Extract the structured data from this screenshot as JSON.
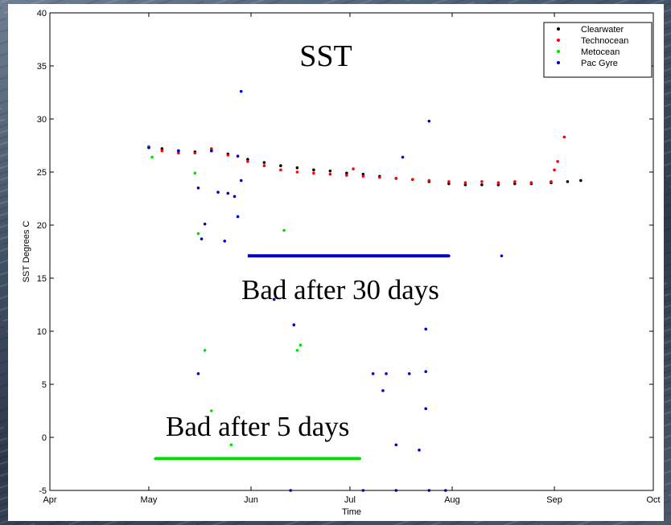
{
  "chart_data": {
    "type": "scatter",
    "title": "SST",
    "xlabel": "Time",
    "ylabel": "SST Degrees C",
    "x_ticks": [
      "Apr",
      "May",
      "Jun",
      "Jul",
      "Aug",
      "Sep",
      "Oct"
    ],
    "ylim": [
      -5,
      40
    ],
    "y_ticks": [
      -5,
      0,
      5,
      10,
      15,
      20,
      25,
      30,
      35,
      40
    ],
    "legend_position": "top-right",
    "grid": false,
    "annotations": [
      "Bad after 30 days",
      "Bad after 5 days"
    ],
    "series": [
      {
        "name": "Clearwater",
        "color": "#000000",
        "marker": "dot",
        "points": [
          [
            "05-01",
            27.4
          ],
          [
            "05-05",
            27.2
          ],
          [
            "05-10",
            27.0
          ],
          [
            "05-15",
            26.9
          ],
          [
            "05-20",
            27.0
          ],
          [
            "05-25",
            26.7
          ],
          [
            "05-31",
            26.2
          ],
          [
            "06-05",
            25.9
          ],
          [
            "06-10",
            25.6
          ],
          [
            "06-15",
            25.4
          ],
          [
            "06-20",
            25.2
          ],
          [
            "06-25",
            25.1
          ],
          [
            "06-30",
            24.9
          ],
          [
            "07-05",
            24.8
          ],
          [
            "07-10",
            24.6
          ],
          [
            "07-15",
            24.4
          ],
          [
            "07-20",
            24.3
          ],
          [
            "07-25",
            24.1
          ],
          [
            "07-31",
            23.9
          ],
          [
            "08-05",
            23.8
          ],
          [
            "08-10",
            23.8
          ],
          [
            "08-15",
            23.8
          ],
          [
            "08-20",
            23.9
          ],
          [
            "08-25",
            23.9
          ],
          [
            "08-31",
            24.0
          ],
          [
            "09-05",
            24.1
          ],
          [
            "09-09",
            24.2
          ]
        ]
      },
      {
        "name": "Technocean",
        "color": "#ff0000",
        "marker": "dot",
        "points": [
          [
            "05-01",
            27.3
          ],
          [
            "05-05",
            27.0
          ],
          [
            "05-10",
            26.8
          ],
          [
            "05-15",
            26.8
          ],
          [
            "05-20",
            27.2
          ],
          [
            "05-25",
            26.6
          ],
          [
            "05-31",
            26.0
          ],
          [
            "06-05",
            25.6
          ],
          [
            "06-10",
            25.2
          ],
          [
            "06-15",
            25.0
          ],
          [
            "06-20",
            24.9
          ],
          [
            "06-25",
            24.8
          ],
          [
            "06-30",
            24.7
          ],
          [
            "07-02",
            25.3
          ],
          [
            "07-05",
            24.6
          ],
          [
            "07-10",
            24.5
          ],
          [
            "07-15",
            24.4
          ],
          [
            "07-20",
            24.3
          ],
          [
            "07-25",
            24.2
          ],
          [
            "07-31",
            24.1
          ],
          [
            "08-05",
            24.0
          ],
          [
            "08-10",
            24.1
          ],
          [
            "08-15",
            24.0
          ],
          [
            "08-20",
            24.1
          ],
          [
            "08-25",
            24.0
          ],
          [
            "08-31",
            24.1
          ],
          [
            "09-01",
            25.2
          ],
          [
            "09-02",
            26.0
          ],
          [
            "09-04",
            28.3
          ]
        ]
      },
      {
        "name": "Metocean",
        "color": "#00e000",
        "marker": "dot",
        "points": [
          [
            "05-01",
            27.4
          ],
          [
            "05-02",
            26.4
          ],
          [
            "05-15",
            24.9
          ],
          [
            "05-16",
            19.2
          ],
          [
            "05-18",
            8.2
          ],
          [
            "05-20",
            2.5
          ],
          [
            "05-26",
            -0.7
          ],
          [
            "06-11",
            19.5
          ],
          [
            "06-15",
            8.2
          ],
          [
            "06-16",
            8.7
          ],
          [
            "05-03",
            -2.0
          ],
          [
            "05-10",
            -2.0
          ],
          [
            "05-20",
            -2.0
          ],
          [
            "05-30",
            -2.0
          ],
          [
            "06-10",
            -2.0
          ],
          [
            "06-20",
            -2.0
          ],
          [
            "07-04",
            -2.0
          ]
        ]
      },
      {
        "name": "Pac Gyre",
        "color": "#0000cc",
        "marker": "dot",
        "points": [
          [
            "05-01",
            27.3
          ],
          [
            "05-10",
            27.0
          ],
          [
            "05-20",
            27.0
          ],
          [
            "05-28",
            26.5
          ],
          [
            "05-16",
            23.5
          ],
          [
            "05-18",
            20.1
          ],
          [
            "05-22",
            23.1
          ],
          [
            "05-25",
            23.0
          ],
          [
            "05-27",
            22.7
          ],
          [
            "05-28",
            20.8
          ],
          [
            "05-29",
            24.2
          ],
          [
            "05-29",
            32.6
          ],
          [
            "05-16",
            6.0
          ],
          [
            "05-17",
            18.7
          ],
          [
            "05-24",
            18.5
          ],
          [
            "06-01",
            17.1
          ],
          [
            "06-10",
            17.1
          ],
          [
            "06-20",
            17.1
          ],
          [
            "06-30",
            17.1
          ],
          [
            "07-10",
            17.1
          ],
          [
            "07-20",
            17.1
          ],
          [
            "07-31",
            17.1
          ],
          [
            "06-08",
            13.0
          ],
          [
            "06-14",
            10.6
          ],
          [
            "06-13",
            -5.0
          ],
          [
            "07-08",
            6.0
          ],
          [
            "07-11",
            4.4
          ],
          [
            "07-12",
            6.0
          ],
          [
            "07-15",
            -0.7
          ],
          [
            "07-19",
            6.0
          ],
          [
            "07-22",
            -1.2
          ],
          [
            "07-24",
            6.2
          ],
          [
            "07-24",
            10.2
          ],
          [
            "07-24",
            2.7
          ],
          [
            "07-25",
            29.8
          ],
          [
            "07-17",
            26.4
          ],
          [
            "08-16",
            17.1
          ],
          [
            "07-05",
            -5.0
          ],
          [
            "07-15",
            -5.0
          ],
          [
            "07-25",
            -5.0
          ],
          [
            "07-30",
            -5.0
          ]
        ]
      }
    ],
    "indicator_lines": [
      {
        "color": "#0000cc",
        "y": 17.1,
        "x_start": "05-31",
        "x_end": "07-31"
      },
      {
        "color": "#00e000",
        "y": -2.0,
        "x_start": "05-03",
        "x_end": "07-04"
      }
    ]
  }
}
